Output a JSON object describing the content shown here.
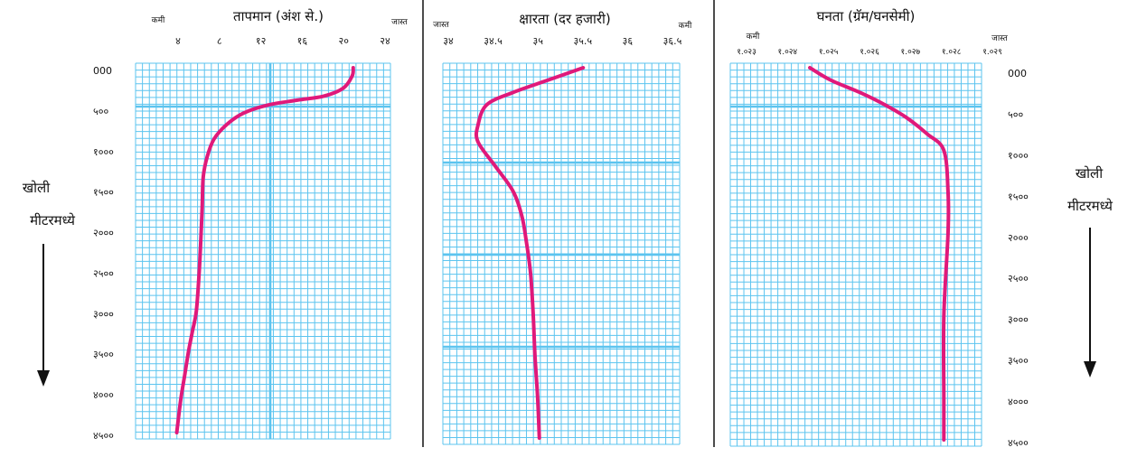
{
  "side_labels": {
    "left": {
      "line1": "खोली",
      "line2": "मीटरमध्ये"
    },
    "right": {
      "line1": "खोली",
      "line2": "मीटरमध्ये"
    }
  },
  "colors": {
    "grid": "#5cc4ef",
    "curve": "#e0197a",
    "divider": "#111111"
  },
  "chart_data": [
    {
      "type": "line",
      "title": "तापमान (अंश से.)",
      "axis_low_label": "कमी",
      "axis_high_label": "जास्त",
      "x_ticks": [
        "४",
        "८",
        "१२",
        "१६",
        "२०",
        "२४"
      ],
      "x_tick_values": [
        4,
        8,
        12,
        16,
        20,
        24
      ],
      "xlim": [
        0,
        26
      ],
      "y_ticks": [
        "000",
        "५००",
        "१०००",
        "१५००",
        "२०००",
        "२५००",
        "३०००",
        "३५००",
        "४०००",
        "४५००"
      ],
      "y_tick_values": [
        0,
        500,
        1000,
        1500,
        2000,
        2500,
        3000,
        3500,
        4000,
        4500
      ],
      "ylim": [
        0,
        4500
      ],
      "series": [
        {
          "x": [
            22.2,
            22.1,
            21.2,
            19.2,
            16.5,
            13.5,
            11.0,
            9.3,
            8.0,
            7.3,
            6.9,
            6.8,
            6.7,
            6.5,
            6.2,
            5.8,
            5.4,
            5.0,
            4.6,
            4.2
          ],
          "y": [
            0,
            100,
            250,
            350,
            400,
            460,
            560,
            700,
            880,
            1100,
            1350,
            1700,
            2000,
            2500,
            3000,
            3250,
            3500,
            3800,
            4100,
            4500
          ]
        }
      ]
    },
    {
      "type": "line",
      "title": "क्षारता (दर हजारी)",
      "axis_low_label": "जास्त",
      "axis_high_label": "कमी",
      "x_ticks": [
        "३४",
        "३४.५",
        "३५",
        "३५.५",
        "३६",
        "३६.५"
      ],
      "x_tick_values": [
        34,
        34.5,
        35,
        35.5,
        36,
        36.5
      ],
      "xlim": [
        33.9,
        36.6
      ],
      "y_ticks": [],
      "y_tick_values": [],
      "ylim": [
        0,
        4500
      ],
      "series": [
        {
          "x": [
            35.5,
            35.1,
            34.7,
            34.4,
            34.3,
            34.3,
            34.5,
            34.7,
            34.8,
            34.85,
            34.9,
            34.93,
            34.95,
            34.98,
            35.0
          ],
          "y": [
            0,
            150,
            300,
            450,
            700,
            900,
            1200,
            1500,
            1800,
            2100,
            2500,
            3000,
            3500,
            4000,
            4500
          ]
        }
      ]
    },
    {
      "type": "line",
      "title": "घनता (ग्रॅम/घनसेमी)",
      "axis_low_label": "कमी",
      "axis_high_label": "जास्त",
      "x_ticks": [
        "१.०२३",
        "१.०२४",
        "१.०२५",
        "१.०२६",
        "१.०२७",
        "१.०२८",
        "१.०२९"
      ],
      "x_tick_values": [
        1.023,
        1.024,
        1.025,
        1.026,
        1.027,
        1.028,
        1.029
      ],
      "xlim": [
        1.023,
        1.029
      ],
      "y_ticks": [
        "000",
        "५००",
        "१०००",
        "१५००",
        "२०००",
        "२५००",
        "३०००",
        "३५००",
        "४०००",
        "४५००"
      ],
      "y_tick_values": [
        0,
        500,
        1000,
        1500,
        2000,
        2500,
        3000,
        3500,
        4000,
        4500
      ],
      "ylim": [
        0,
        4500
      ],
      "series": [
        {
          "x": [
            1.0249,
            1.0254,
            1.0261,
            1.0267,
            1.0272,
            1.0277,
            1.0281,
            1.0282,
            1.0282,
            1.0281,
            1.0281,
            1.0281
          ],
          "y": [
            0,
            150,
            300,
            450,
            600,
            800,
            1000,
            1500,
            2000,
            3000,
            4000,
            4500
          ]
        }
      ]
    }
  ]
}
